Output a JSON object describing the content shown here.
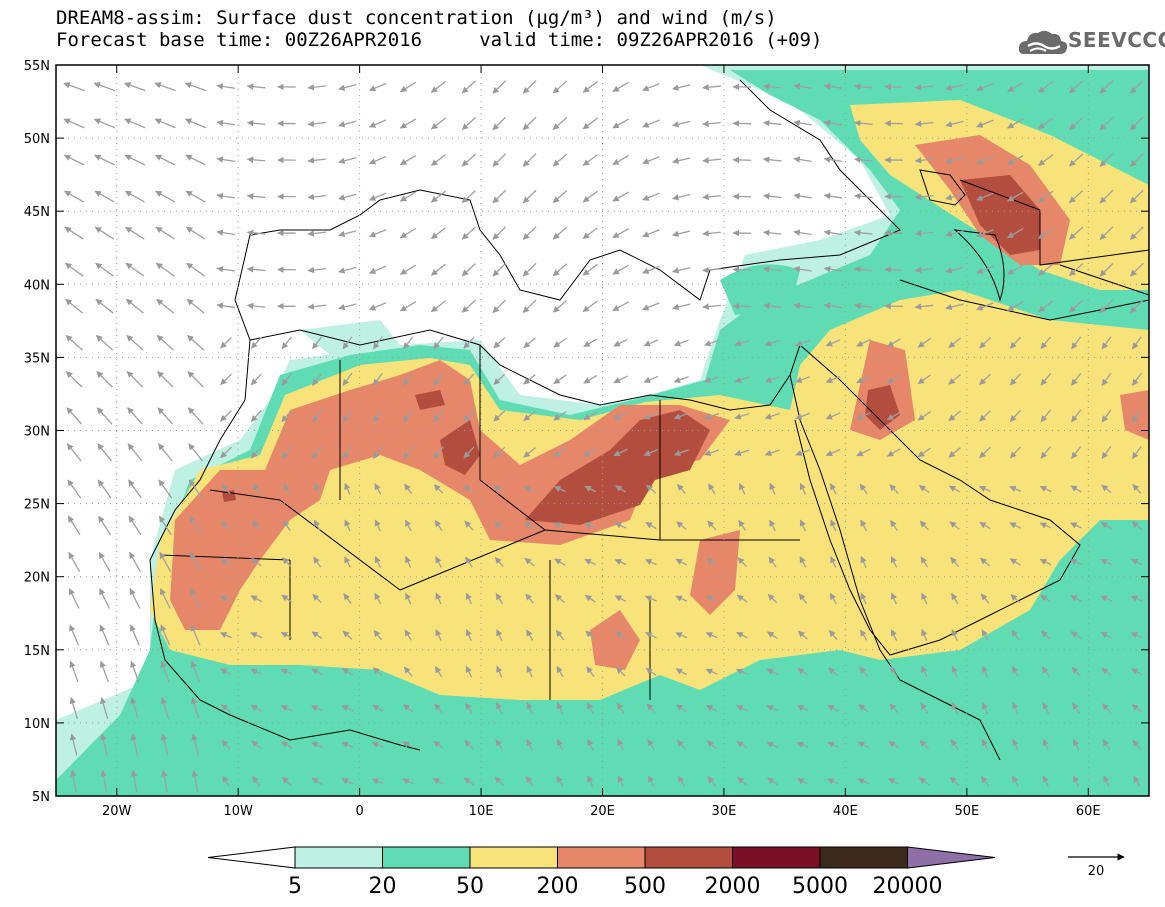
{
  "header": {
    "title_line1": "DREAM8-assim: Surface dust concentration (µg/m³) and wind (m/s)",
    "title_line2": "Forecast base time: 00Z26APR2016     valid time: 09Z26APR2016 (+09)"
  },
  "logo": {
    "text": "SEEVCCC",
    "icon": "cloud-logo-icon"
  },
  "axes": {
    "lon_labels": [
      "20W",
      "10W",
      "0",
      "10E",
      "20E",
      "30E",
      "40E",
      "50E",
      "60E"
    ],
    "lat_labels": [
      "55N",
      "50N",
      "45N",
      "40N",
      "35N",
      "30N",
      "25N",
      "20N",
      "15N",
      "10N",
      "5N"
    ],
    "lon_range": [
      -25,
      65
    ],
    "lat_range": [
      5,
      55
    ]
  },
  "colorbar": {
    "labels": [
      "5",
      "20",
      "50",
      "200",
      "500",
      "2000",
      "5000",
      "20000"
    ],
    "colors": [
      "#ffffff",
      "#bff0e4",
      "#5fdcb4",
      "#f8e27a",
      "#e6876a",
      "#b34e3f",
      "#7b0f25",
      "#3e2a1c",
      "#8f6fa8"
    ]
  },
  "wind_reference": {
    "label": "20"
  },
  "colors": {
    "lev1": "#bff0e4",
    "lev2": "#5fdcb4",
    "lev3": "#f8e27a",
    "lev4": "#e6876a",
    "lev5": "#b34e3f",
    "arrow": "#a0a0a0"
  }
}
